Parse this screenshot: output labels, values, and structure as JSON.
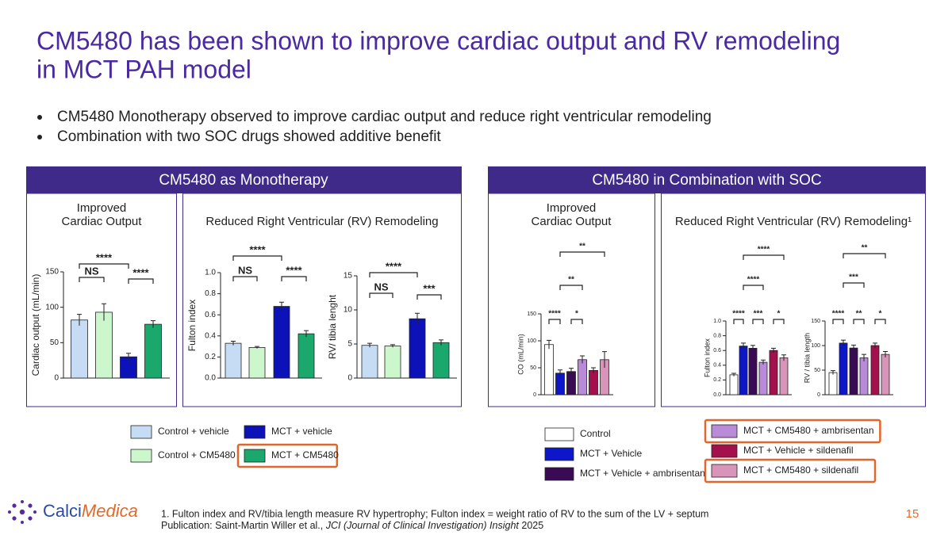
{
  "title": [
    "CM5480 has been shown to improve cardiac output and RV remodeling",
    "in MCT PAH model"
  ],
  "bullets": [
    "CM5480 Monotherapy observed to improve cardiac output and reduce right ventricular remodeling",
    "Combination with two SOC drugs showed additive benefit"
  ],
  "panels": [
    {
      "header": "CM5480 as Monotherapy",
      "sections": [
        [
          "Improved",
          "Cardiac Output"
        ],
        [
          "Reduced Right Ventricular (RV) Remodeling"
        ]
      ]
    },
    {
      "header": "CM5480 in Combination with SOC",
      "sections": [
        [
          "Improved",
          "Cardiac Output"
        ],
        [
          "Reduced Right Ventricular (RV) Remodeling¹"
        ]
      ]
    }
  ],
  "legends": [
    [
      {
        "name": "Control + vehicle",
        "color": "#c6dcf4",
        "highlight": false
      },
      {
        "name": "Control + CM5480",
        "color": "#ccf7cc",
        "highlight": false
      },
      {
        "name": "MCT + vehicle",
        "color": "#0d12b8",
        "highlight": false
      },
      {
        "name": "MCT + CM5480",
        "color": "#1aa86c",
        "highlight": true
      }
    ],
    [
      {
        "name": "Control",
        "color": "#ffffff",
        "highlight": false
      },
      {
        "name": "MCT + Vehicle",
        "color": "#0d16c8",
        "highlight": false
      },
      {
        "name": "MCT + Vehicle + ambrisentan",
        "color": "#3a0a55",
        "highlight": false
      },
      {
        "name": "MCT + CM5480 + ambrisentan",
        "color": "#b98ad8",
        "highlight": true
      },
      {
        "name": "MCT + Vehicle + sildenafil",
        "color": "#a3104c",
        "highlight": false
      },
      {
        "name": "MCT + CM5480 + sildenafil",
        "color": "#d994ba",
        "highlight": true
      }
    ]
  ],
  "chart_data": [
    {
      "type": "bar",
      "ylabel": "Cardiac output (mL/min)",
      "categories": [
        null,
        null,
        null,
        null
      ],
      "values": [
        82,
        93,
        30,
        76
      ],
      "errors": [
        8,
        12,
        5,
        5
      ],
      "ylim": [
        0,
        150
      ],
      "yticks": [
        0,
        50,
        100,
        150
      ],
      "annotations": [
        "****",
        "NS",
        "****"
      ]
    },
    {
      "type": "bar",
      "ylabel": "Fulton index",
      "categories": [
        null,
        null,
        null,
        null
      ],
      "values": [
        0.33,
        0.29,
        0.68,
        0.42
      ],
      "errors": [
        0.02,
        0.01,
        0.04,
        0.03
      ],
      "ylim": [
        0,
        1.0
      ],
      "yticks": [
        {
          "value": 0,
          "label": "0.0"
        },
        0.2,
        0.4,
        0.6,
        0.8,
        {
          "value": 1,
          "label": "1.0"
        }
      ],
      "annotations": [
        "****",
        "NS",
        "****"
      ]
    },
    {
      "type": "bar",
      "ylabel": "RV/ tibia lenght",
      "categories": [
        null,
        null,
        null,
        null
      ],
      "values": [
        4.8,
        4.7,
        8.7,
        5.2
      ],
      "errors": [
        0.3,
        0.2,
        0.8,
        0.4
      ],
      "ylim": [
        0,
        15
      ],
      "yticks": [
        0,
        5,
        10,
        15
      ],
      "annotations": [
        "****",
        "NS",
        "***"
      ]
    },
    {
      "type": "bar",
      "ylabel": "CO (mL/min)",
      "categories": [
        null,
        null,
        null,
        null,
        null,
        null
      ],
      "values": [
        93,
        40,
        43,
        65,
        45,
        65
      ],
      "errors": [
        8,
        6,
        6,
        7,
        5,
        15
      ],
      "ylim": [
        0,
        150
      ],
      "yticks": [
        0,
        50,
        100,
        150
      ],
      "annotations": [
        "**",
        "**",
        "****",
        "*"
      ]
    },
    {
      "type": "bar",
      "ylabel": "Fulton index",
      "categories": [
        null,
        null,
        null,
        null,
        null,
        null
      ],
      "values": [
        0.27,
        0.66,
        0.63,
        0.44,
        0.6,
        0.5
      ],
      "errors": [
        0.02,
        0.04,
        0.04,
        0.03,
        0.03,
        0.04
      ],
      "ylim": [
        0,
        1.0
      ],
      "yticks": [
        {
          "value": 0,
          "label": "0.0"
        },
        0.2,
        0.4,
        0.6,
        0.8,
        {
          "value": 1,
          "label": "1.0"
        }
      ],
      "annotations": [
        "****",
        "****",
        "****",
        "***",
        "*"
      ]
    },
    {
      "type": "bar",
      "ylabel": "RV / tibia length",
      "categories": [
        null,
        null,
        null,
        null,
        null,
        null
      ],
      "values": [
        45,
        105,
        95,
        75,
        100,
        82
      ],
      "errors": [
        4,
        6,
        6,
        7,
        5,
        6
      ],
      "ylim": [
        0,
        150
      ],
      "yticks": [
        0,
        50,
        100,
        150
      ],
      "annotations": [
        "**",
        "***",
        "****",
        "**",
        "*"
      ]
    }
  ],
  "logo": [
    "Calci",
    "Medica"
  ],
  "footnote": [
    "1. Fulton index and RV/tibia length measure RV hypertrophy; Fulton index = weight ratio of RV to the sum of the LV + septum",
    [
      "Publication: Saint-Martin Willer et al., ",
      "JCI (Journal of Clinical Investigation) Insight",
      " 2025"
    ]
  ],
  "page_number": "15"
}
